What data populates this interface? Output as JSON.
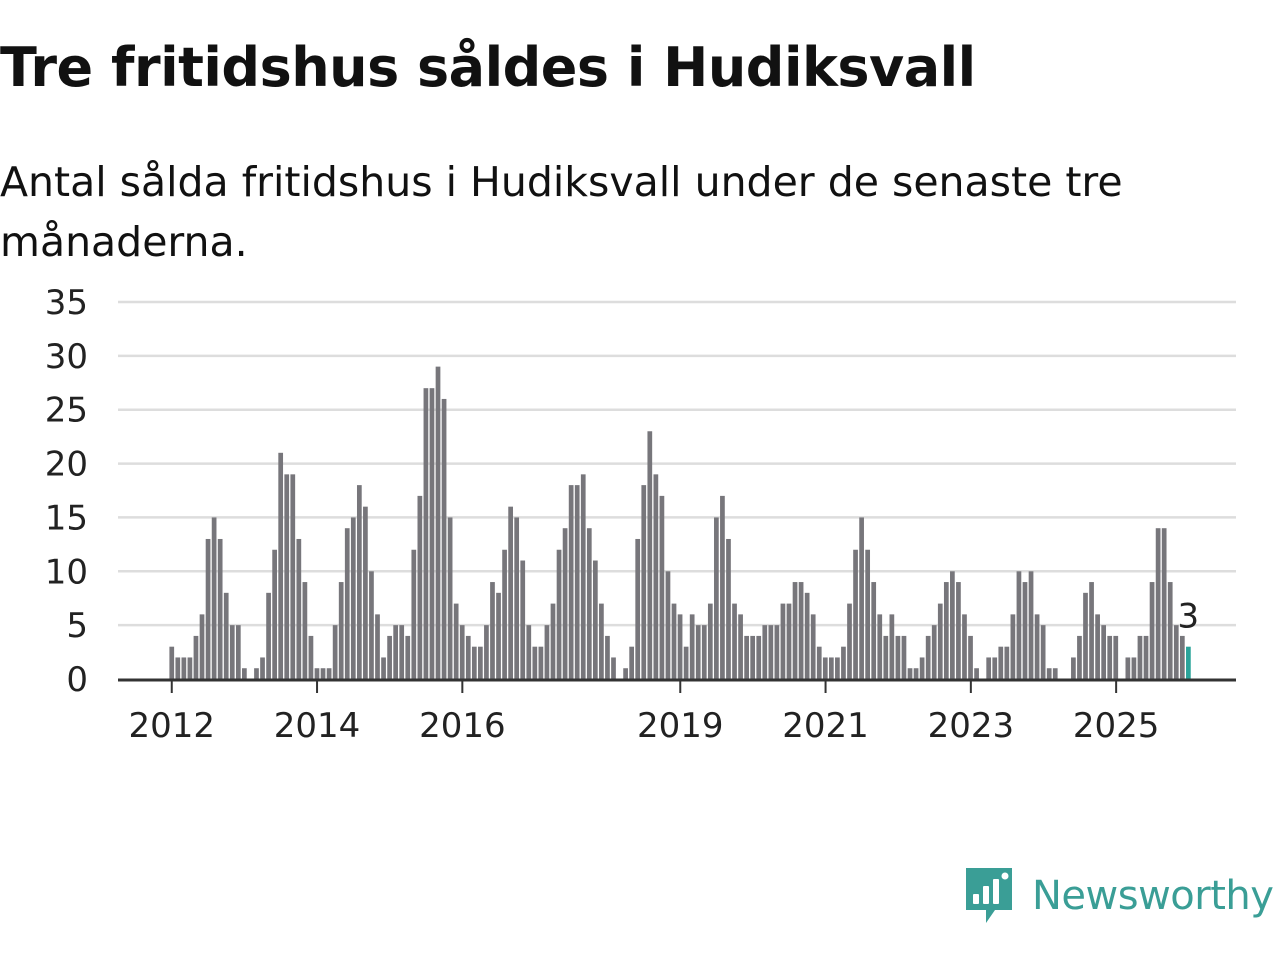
{
  "title": "Tre fritidshus såldes i Hudiksvall",
  "subtitle": "Antal sålda fritidshus i Hudiksvall under de senaste tre månaderna.",
  "brand": {
    "name": "Newsworthy",
    "icon": "newsworthy-logo-icon",
    "color": "#3a9e96"
  },
  "colors": {
    "bar": "#77767b",
    "highlight": "#2aa39a",
    "grid": "#dddddd",
    "axis": "#333333"
  },
  "chart_data": {
    "type": "bar",
    "title": "Tre fritidshus såldes i Hudiksvall",
    "ylabel": "",
    "xlabel": "",
    "ylim": [
      0,
      35
    ],
    "yticks": [
      0,
      5,
      10,
      15,
      20,
      25,
      30,
      35
    ],
    "xlim": [
      2011.26,
      2026.65
    ],
    "xticks": [
      {
        "label": "2012",
        "x": 2012.0
      },
      {
        "label": "2014",
        "x": 2014.0
      },
      {
        "label": "2016",
        "x": 2016.0
      },
      {
        "label": "2019",
        "x": 2019.0
      },
      {
        "label": "2021",
        "x": 2021.0
      },
      {
        "label": "2023",
        "x": 2023.0
      },
      {
        "label": "2025",
        "x": 2025.0
      }
    ],
    "x_start": 2012.0,
    "step": 0.0833,
    "highlight_last": true,
    "last_label": "3",
    "values": [
      3,
      2,
      2,
      2,
      4,
      6,
      13,
      15,
      13,
      8,
      5,
      5,
      1,
      0,
      1,
      2,
      8,
      12,
      21,
      19,
      19,
      13,
      9,
      4,
      1,
      1,
      1,
      5,
      9,
      14,
      15,
      18,
      16,
      10,
      6,
      2,
      4,
      5,
      5,
      4,
      12,
      17,
      27,
      27,
      29,
      26,
      15,
      7,
      5,
      4,
      3,
      3,
      5,
      9,
      8,
      12,
      16,
      15,
      11,
      5,
      3,
      3,
      5,
      7,
      12,
      14,
      18,
      18,
      19,
      14,
      11,
      7,
      4,
      2,
      0,
      1,
      3,
      13,
      18,
      23,
      19,
      17,
      10,
      7,
      6,
      3,
      6,
      5,
      5,
      7,
      15,
      17,
      13,
      7,
      6,
      4,
      4,
      4,
      5,
      5,
      5,
      7,
      7,
      9,
      9,
      8,
      6,
      3,
      2,
      2,
      2,
      3,
      7,
      12,
      15,
      12,
      9,
      6,
      4,
      6,
      4,
      4,
      1,
      1,
      2,
      4,
      5,
      7,
      9,
      10,
      9,
      6,
      4,
      1,
      0,
      2,
      2,
      3,
      3,
      6,
      10,
      9,
      10,
      6,
      5,
      1,
      1,
      0,
      0,
      2,
      4,
      8,
      9,
      6,
      5,
      4,
      4,
      0,
      2,
      2,
      4,
      4,
      9,
      14,
      14,
      9,
      5,
      4,
      3
    ]
  }
}
